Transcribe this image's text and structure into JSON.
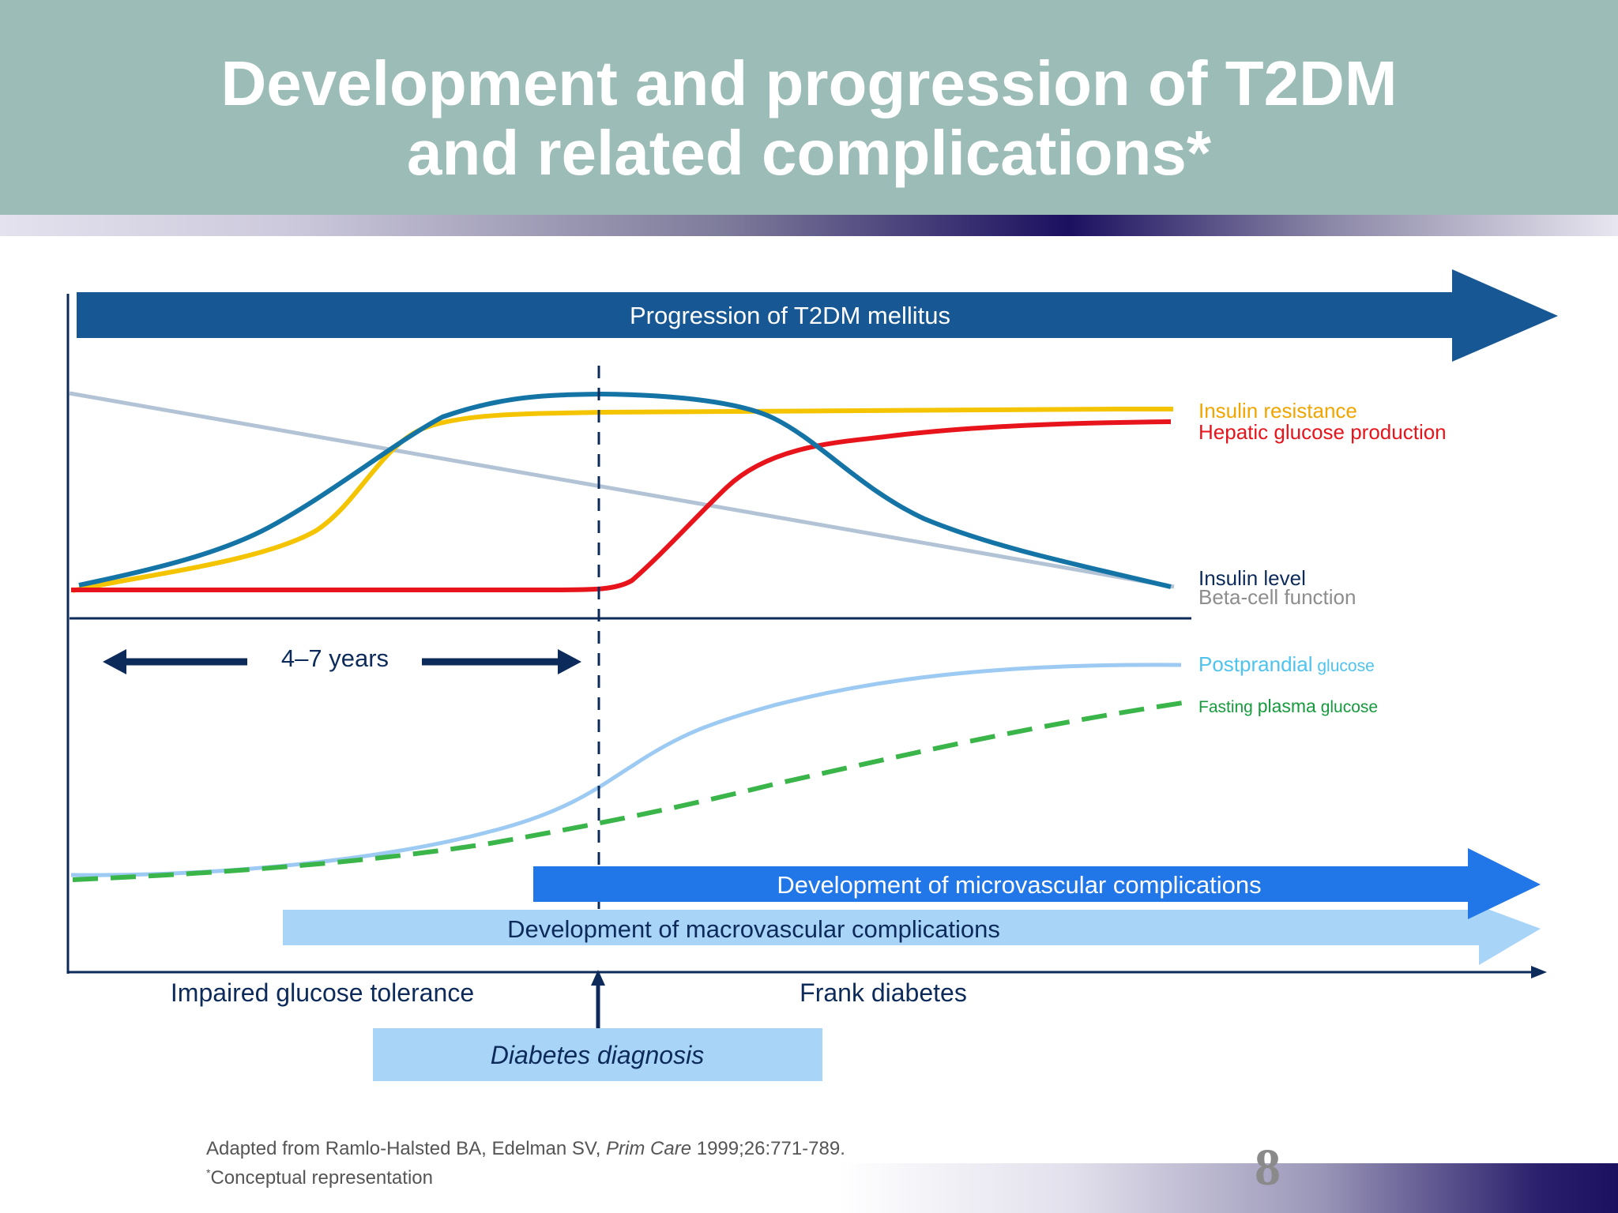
{
  "header": {
    "title_line1": "Development and progression of T2DM",
    "title_line2": "and related complications*"
  },
  "diagram": {
    "banner_progression": "Progression of T2DM mellitus",
    "banner_micro": "Development of microvascular complications",
    "banner_macro": "Development of macrovascular complications",
    "duration_label": "4–7 years",
    "phase_left": "Impaired glucose tolerance",
    "phase_right": "Frank diabetes",
    "diagnosis_label": "Diabetes diagnosis",
    "legend": {
      "insulin_resistance": "Insulin resistance",
      "hepatic_glucose": "Hepatic glucose production",
      "insulin_level": "Insulin level",
      "beta_cell": "Beta-cell function",
      "postprandial_main": "Postprandial",
      "postprandial_suffix": " glucose",
      "fasting_prefix": "Fasting ",
      "fasting_main": "plasma",
      "fasting_suffix": " glucose"
    },
    "colors": {
      "insulin_resistance": "#f5c400",
      "hepatic_glucose": "#e8141b",
      "insulin_level": "#1474a6",
      "beta_cell": "#b3c3d6",
      "postprandial": "#9ccaf2",
      "fasting": "#3ab54a",
      "banner_dark": "#175894",
      "banner_micro": "#2176e8",
      "banner_macro": "#a8d4f7",
      "axis": "#0d2b5a"
    }
  },
  "footer": {
    "citation_prefix": "Adapted from Ramlo-Halsted BA, Edelman SV, ",
    "citation_journal": "Prim Care",
    "citation_suffix": " 1999;26:771-789.",
    "note_mark": "*",
    "note_text": "Conceptual representation",
    "page_number": "8"
  }
}
